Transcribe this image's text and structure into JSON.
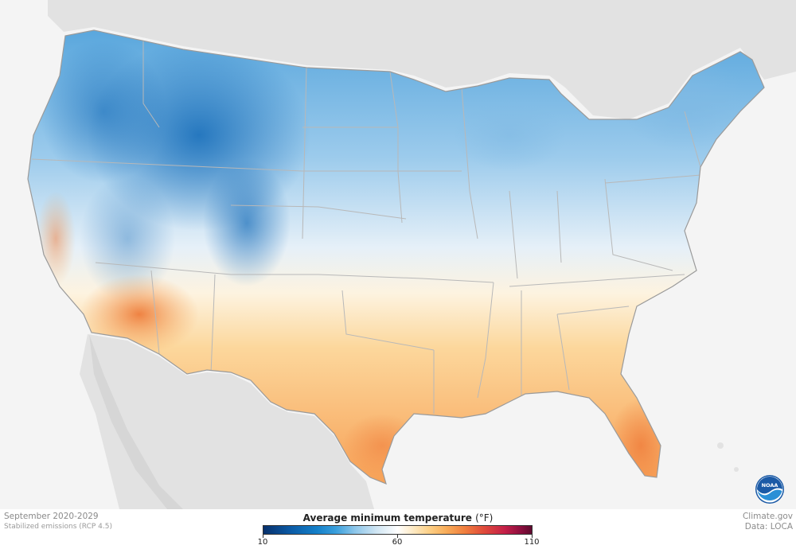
{
  "map": {
    "period": "September 2020-2029",
    "scenario": "Stabilized emissions (RCP 4.5)",
    "legend_title": "Average minimum temperature",
    "legend_unit": "(°F)",
    "legend_ticks": [
      "10",
      "60",
      "110"
    ],
    "credit_line1": "Climate.gov",
    "credit_line2": "Data: LOCA",
    "logo_text": "NOAA",
    "scale_min": 10,
    "scale_mid": 60,
    "scale_max": 110,
    "colors": {
      "cold": "#1480c9",
      "neutral": "#ffffff",
      "warm": "#f8ad5a",
      "hot": "#e04c3b",
      "land_outside": "#e2e2e2",
      "water": "#f4f4f4"
    }
  }
}
